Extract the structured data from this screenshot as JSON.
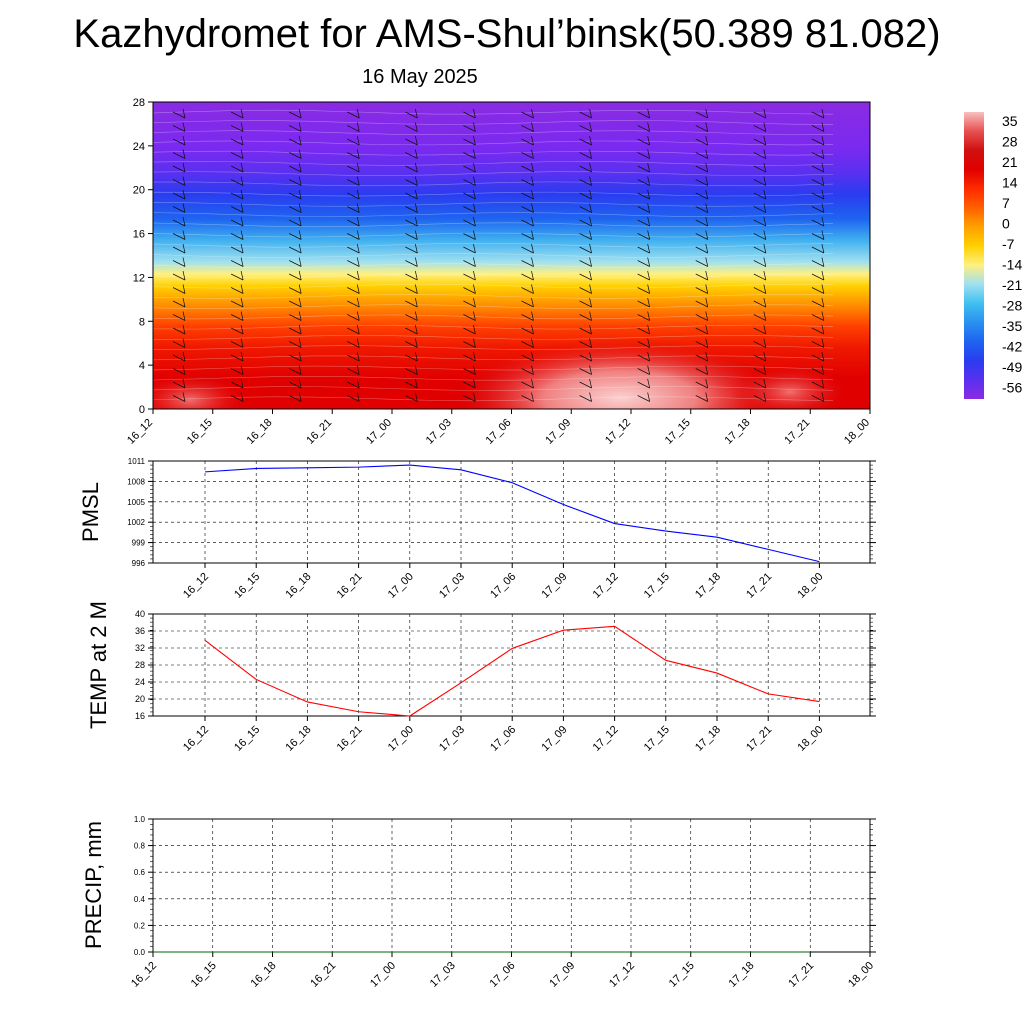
{
  "title": "Kazhydromet for AMS-Shul’binsk(50.389 81.082)",
  "subtitle": "16 May 2025",
  "chart_data": [
    {
      "type": "heatmap",
      "name": "vertical temperature cross-section with wind barbs",
      "x_ticks": [
        "16_12",
        "16_15",
        "16_18",
        "16_21",
        "17_00",
        "17_03",
        "17_06",
        "17_09",
        "17_12",
        "17_15",
        "17_18",
        "17_21",
        "18_00"
      ],
      "y_ticks": [
        "0",
        "4",
        "8",
        "12",
        "16",
        "20",
        "24",
        "28"
      ],
      "ylim": [
        0,
        28
      ],
      "colorbar_ticks": [
        "35",
        "28",
        "21",
        "14",
        "7",
        "0",
        "-7",
        "-14",
        "-21",
        "-28",
        "-35",
        "-42",
        "-49",
        "-56"
      ],
      "colorbar_range": [
        -60,
        38
      ],
      "colorbar_colors": [
        "#8a2be2",
        "#5a30f0",
        "#2a3cf0",
        "#1e64f0",
        "#2a90f0",
        "#40c0f0",
        "#a0e0f0",
        "#fff080",
        "#ffd000",
        "#ffa000",
        "#ff6000",
        "#ff2a00",
        "#e00000",
        "#d01010",
        "#e85050",
        "#f8c0c0"
      ],
      "barbs_shown": true
    },
    {
      "type": "line",
      "ylabel": "PMSL",
      "x_ticks": [
        "16_12",
        "16_15",
        "16_18",
        "16_21",
        "17_00",
        "17_03",
        "17_06",
        "17_09",
        "17_12",
        "17_15",
        "17_18",
        "17_21",
        "18_00"
      ],
      "y_ticks": [
        "996",
        "999",
        "1002",
        "1005",
        "1008",
        "1011"
      ],
      "ylim": [
        996,
        1011
      ],
      "grid": true,
      "series": [
        {
          "color": "#0000ff",
          "values": [
            1009.4,
            1009.9,
            1010.0,
            1010.1,
            1010.4,
            1009.7,
            1007.8,
            1004.6,
            1001.8,
            1000.7,
            999.8,
            998.0,
            996.2
          ]
        }
      ]
    },
    {
      "type": "line",
      "ylabel": "TEMP at 2 M",
      "x_ticks": [
        "16_12",
        "16_15",
        "16_18",
        "16_21",
        "17_00",
        "17_03",
        "17_06",
        "17_09",
        "17_12",
        "17_15",
        "17_18",
        "17_21",
        "18_00"
      ],
      "y_ticks": [
        "16",
        "20",
        "24",
        "28",
        "32",
        "36",
        "40"
      ],
      "ylim": [
        16,
        40
      ],
      "grid": true,
      "series": [
        {
          "color": "#ff0000",
          "values": [
            33.8,
            24.6,
            19.3,
            17.0,
            16.0,
            23.8,
            31.9,
            36.2,
            37.1,
            29.1,
            26.1,
            21.2,
            19.4
          ]
        }
      ]
    },
    {
      "type": "line",
      "ylabel": "PRECIP, mm",
      "x_ticks": [
        "16_12",
        "16_15",
        "16_18",
        "16_21",
        "17_00",
        "17_03",
        "17_06",
        "17_09",
        "17_12",
        "17_15",
        "17_18",
        "17_21",
        "18_00"
      ],
      "y_ticks": [
        "0.0",
        "0.2",
        "0.4",
        "0.6",
        "0.8",
        "1.0"
      ],
      "ylim": [
        0,
        1
      ],
      "grid": true,
      "series": [
        {
          "color": "#006400",
          "values": [
            0,
            0,
            0,
            0,
            0,
            0,
            0,
            0,
            0,
            0,
            0,
            0
          ]
        }
      ]
    }
  ]
}
